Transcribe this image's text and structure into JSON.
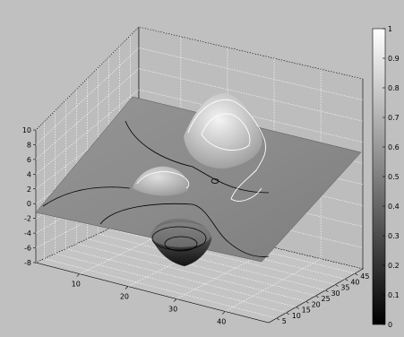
{
  "chart_data": {
    "type": "surface",
    "title": "",
    "xlabel": "",
    "ylabel": "",
    "zlabel": "",
    "x_ticks": [
      10,
      20,
      30,
      40
    ],
    "y_ticks": [
      5,
      10,
      15,
      20,
      25,
      30,
      35,
      40,
      45
    ],
    "z_ticks": [
      10,
      8,
      6,
      4,
      2,
      0,
      -2,
      -4,
      -6,
      -8
    ],
    "xlim": [
      1,
      49
    ],
    "ylim": [
      1,
      49
    ],
    "zlim": [
      -8,
      10
    ],
    "grid": true,
    "colormap": "gray",
    "colorbar_ticks": [
      "1",
      "0.9",
      "0.8",
      "0.7",
      "0.6",
      "0.5",
      "0.4",
      "0.3",
      "0.2",
      "0.1",
      "0"
    ],
    "colorbar_range": [
      0,
      1
    ],
    "colors": {
      "background": "#c0c0c0",
      "surface": "#8c8c8c",
      "grid": "#ffffff"
    },
    "features": [
      {
        "name": "peak",
        "x": 25,
        "y": 36,
        "z": 8.5
      },
      {
        "name": "secondary-peak",
        "x": 17,
        "y": 24,
        "z": 3.5
      },
      {
        "name": "pit",
        "x": 22,
        "y": 12,
        "z": -6.5
      }
    ]
  }
}
